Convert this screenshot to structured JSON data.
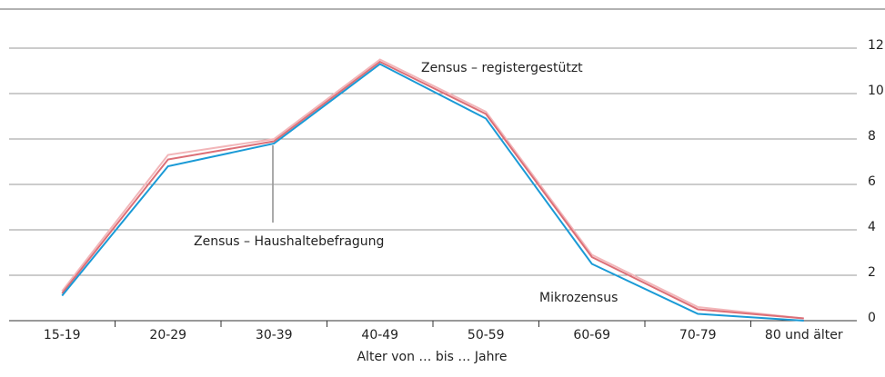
{
  "chart_data": {
    "type": "line",
    "categories": [
      "15-19",
      "20-29",
      "30-39",
      "40-49",
      "50-59",
      "60-69",
      "70-79",
      "80 und älter"
    ],
    "series": [
      {
        "name": "Zensus – registergestützt",
        "color": "#f2b6b9",
        "values": [
          1.3,
          7.3,
          8.0,
          11.5,
          9.2,
          2.9,
          0.6,
          0.1
        ]
      },
      {
        "name": "Zensus – Haushaltebefragung",
        "color": "#dc6f77",
        "values": [
          1.2,
          7.1,
          7.9,
          11.4,
          9.1,
          2.8,
          0.5,
          0.1
        ]
      },
      {
        "name": "Mikrozensus",
        "color": "#1a9ad6",
        "values": [
          1.1,
          6.8,
          7.8,
          11.3,
          8.9,
          2.5,
          0.3,
          0.0
        ]
      }
    ],
    "x_label": "Alter von … bis … Jahre",
    "ylim": [
      0,
      12
    ],
    "yticks": [
      0,
      2,
      4,
      6,
      8,
      10,
      12
    ],
    "grid": true
  }
}
